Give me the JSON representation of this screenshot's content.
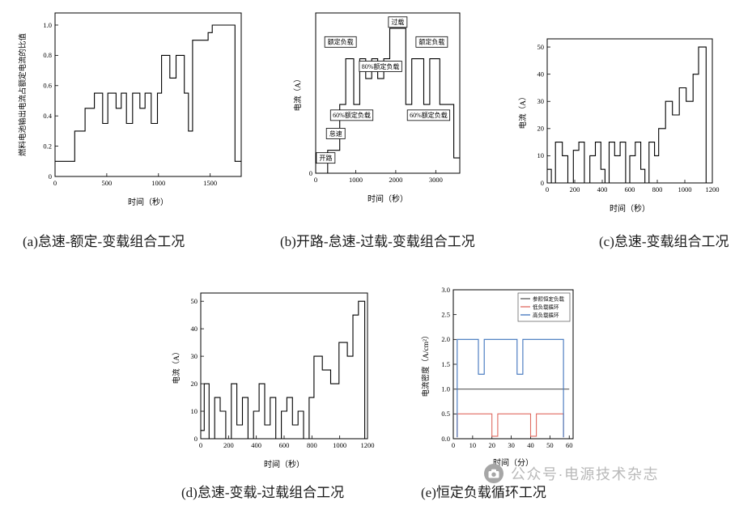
{
  "captions": {
    "a": "(a)怠速-额定-变载组合工况",
    "b": "(b)开路-怠速-过载-变载组合工况",
    "c": "(c)怠速-变载组合工况",
    "d": "(d)怠速-变载-过载组合工况",
    "e": "(e)恒定负载循环工况"
  },
  "watermark": {
    "text": "公众号·电源技术杂志",
    "logo": "camera-icon"
  },
  "chart_data": [
    {
      "id": "a",
      "type": "step",
      "xlabel": "时间（秒）",
      "ylabel": "燃料电池输出电流占额定电流的比值",
      "xlim": [
        0,
        1800
      ],
      "ylim": [
        0,
        1.08
      ],
      "xticks": [
        0,
        500,
        1000,
        1500
      ],
      "yticks": [
        0,
        0.2,
        0.4,
        0.6,
        0.8,
        1.0
      ],
      "ytick_labels": [
        "0",
        "0.2",
        "0.4",
        "0.6",
        "0.8",
        "1.0"
      ],
      "series": [
        {
          "name": "",
          "color": "#000000",
          "mode": "step",
          "xend": 1800,
          "points": [
            [
              0,
              0.1
            ],
            [
              190,
              0.3
            ],
            [
              290,
              0.45
            ],
            [
              380,
              0.55
            ],
            [
              460,
              0.35
            ],
            [
              510,
              0.55
            ],
            [
              590,
              0.45
            ],
            [
              640,
              0.55
            ],
            [
              690,
              0.35
            ],
            [
              750,
              0.55
            ],
            [
              820,
              0.45
            ],
            [
              870,
              0.55
            ],
            [
              930,
              0.35
            ],
            [
              990,
              0.55
            ],
            [
              1030,
              0.8
            ],
            [
              1110,
              0.65
            ],
            [
              1170,
              0.8
            ],
            [
              1250,
              0.55
            ],
            [
              1290,
              0.3
            ],
            [
              1330,
              0.9
            ],
            [
              1480,
              0.95
            ],
            [
              1520,
              1.0
            ],
            [
              1740,
              0.1
            ]
          ]
        }
      ],
      "annotations": [],
      "legend": null
    },
    {
      "id": "b",
      "type": "step",
      "xlabel": "时间（秒）",
      "ylabel": "电流（A）",
      "xlim": [
        0,
        3600
      ],
      "ylim": [
        0,
        105
      ],
      "xticks": [
        0,
        1000,
        2000,
        3000
      ],
      "yticks": [
        0
      ],
      "ytick_labels": [
        "0"
      ],
      "series": [
        {
          "name": "",
          "color": "#000000",
          "mode": "step",
          "xend": 3600,
          "points": [
            [
              0,
              0
            ],
            [
              300,
              15
            ],
            [
              600,
              45
            ],
            [
              750,
              75
            ],
            [
              950,
              45
            ],
            [
              1100,
              75
            ],
            [
              1250,
              62
            ],
            [
              1400,
              75
            ],
            [
              1550,
              62
            ],
            [
              1700,
              75
            ],
            [
              1850,
              95
            ],
            [
              2250,
              45
            ],
            [
              2400,
              75
            ],
            [
              2700,
              45
            ],
            [
              2850,
              75
            ],
            [
              3100,
              45
            ],
            [
              3450,
              10
            ]
          ]
        }
      ],
      "annotations": [
        {
          "text": "开路",
          "x": 250,
          "y": 10
        },
        {
          "text": "怠速",
          "x": 500,
          "y": 26
        },
        {
          "text": "60%额定负载",
          "x": 900,
          "y": 38
        },
        {
          "text": "额定负载",
          "x": 620,
          "y": 86
        },
        {
          "text": "80%额定负载",
          "x": 1620,
          "y": 70
        },
        {
          "text": "过载",
          "x": 2050,
          "y": 99
        },
        {
          "text": "额定负载",
          "x": 2900,
          "y": 86
        },
        {
          "text": "60%额定负载",
          "x": 2820,
          "y": 38
        }
      ],
      "legend": null
    },
    {
      "id": "c",
      "type": "step",
      "xlabel": "时间（秒）",
      "ylabel": "电流（A）",
      "xlim": [
        0,
        1200
      ],
      "ylim": [
        0,
        53
      ],
      "xticks": [
        0,
        200,
        400,
        600,
        800,
        1000,
        1200
      ],
      "yticks": [
        0,
        10,
        20,
        30,
        40,
        50
      ],
      "ytick_labels": [
        "0",
        "10",
        "20",
        "30",
        "40",
        "50"
      ],
      "series": [
        {
          "name": "",
          "color": "#000000",
          "mode": "step",
          "xend": 1200,
          "points": [
            [
              0,
              5
            ],
            [
              30,
              0
            ],
            [
              60,
              15
            ],
            [
              110,
              10
            ],
            [
              150,
              0
            ],
            [
              190,
              12
            ],
            [
              230,
              15
            ],
            [
              270,
              0
            ],
            [
              310,
              10
            ],
            [
              350,
              15
            ],
            [
              390,
              5
            ],
            [
              420,
              0
            ],
            [
              450,
              15
            ],
            [
              490,
              10
            ],
            [
              530,
              15
            ],
            [
              570,
              0
            ],
            [
              600,
              10
            ],
            [
              640,
              15
            ],
            [
              680,
              5
            ],
            [
              710,
              0
            ],
            [
              740,
              15
            ],
            [
              780,
              10
            ],
            [
              810,
              20
            ],
            [
              860,
              30
            ],
            [
              910,
              25
            ],
            [
              960,
              35
            ],
            [
              1010,
              30
            ],
            [
              1060,
              40
            ],
            [
              1100,
              50
            ],
            [
              1155,
              0
            ]
          ]
        }
      ],
      "annotations": [],
      "legend": null
    },
    {
      "id": "d",
      "type": "step",
      "xlabel": "时间（秒）",
      "ylabel": "电流（A）",
      "xlim": [
        0,
        1200
      ],
      "ylim": [
        0,
        53
      ],
      "xticks": [
        0,
        200,
        400,
        600,
        800,
        1000,
        1200
      ],
      "yticks": [
        0,
        10,
        20,
        30,
        40,
        50
      ],
      "ytick_labels": [
        "0",
        "10",
        "20",
        "30",
        "40",
        "50"
      ],
      "series": [
        {
          "name": "",
          "color": "#000000",
          "mode": "step",
          "xend": 1200,
          "points": [
            [
              0,
              3
            ],
            [
              25,
              20
            ],
            [
              60,
              0
            ],
            [
              100,
              15
            ],
            [
              140,
              10
            ],
            [
              180,
              0
            ],
            [
              220,
              20
            ],
            [
              260,
              5
            ],
            [
              300,
              15
            ],
            [
              340,
              0
            ],
            [
              380,
              10
            ],
            [
              420,
              20
            ],
            [
              460,
              5
            ],
            [
              500,
              15
            ],
            [
              540,
              0
            ],
            [
              580,
              10
            ],
            [
              620,
              15
            ],
            [
              660,
              5
            ],
            [
              700,
              10
            ],
            [
              740,
              0
            ],
            [
              780,
              15
            ],
            [
              815,
              30
            ],
            [
              875,
              25
            ],
            [
              935,
              20
            ],
            [
              995,
              35
            ],
            [
              1055,
              30
            ],
            [
              1095,
              45
            ],
            [
              1135,
              50
            ],
            [
              1180,
              0
            ]
          ]
        }
      ],
      "annotations": [],
      "legend": null
    },
    {
      "id": "e",
      "type": "line",
      "xlabel": "时间（分）",
      "ylabel": "电流密度（A/cm²）",
      "xlim": [
        0,
        62
      ],
      "ylim": [
        0,
        3
      ],
      "xticks": [
        0,
        10,
        20,
        30,
        40,
        50,
        60
      ],
      "yticks": [
        0,
        0.5,
        1,
        1.5,
        2,
        2.5,
        3
      ],
      "ytick_labels": [
        "0.0",
        "0.5",
        "1.0",
        "1.5",
        "2.0",
        "2.5",
        "3.0"
      ],
      "series": [
        {
          "name": "参照恒定负载",
          "color": "#595959",
          "mode": "line",
          "points": [
            [
              0,
              1
            ],
            [
              60,
              1
            ]
          ]
        },
        {
          "name": "低负载循环",
          "color": "#e06a60",
          "mode": "line",
          "points": [
            [
              2,
              0.03
            ],
            [
              2,
              0.5
            ],
            [
              20,
              0.5
            ],
            [
              20,
              0.05
            ],
            [
              23,
              0.05
            ],
            [
              23,
              0.5
            ],
            [
              40,
              0.5
            ],
            [
              40,
              0.05
            ],
            [
              43,
              0.05
            ],
            [
              43,
              0.5
            ],
            [
              57,
              0.5
            ],
            [
              57,
              0.03
            ]
          ]
        },
        {
          "name": "高负载循环",
          "color": "#3f74bd",
          "mode": "line",
          "points": [
            [
              2,
              0.03
            ],
            [
              2,
              2
            ],
            [
              13,
              2
            ],
            [
              13,
              1.3
            ],
            [
              16,
              1.3
            ],
            [
              16,
              2
            ],
            [
              33,
              2
            ],
            [
              33,
              1.3
            ],
            [
              36,
              1.3
            ],
            [
              36,
              2
            ],
            [
              57,
              2
            ],
            [
              57,
              0.03
            ]
          ]
        }
      ],
      "annotations": [],
      "legend": {
        "position": "top-right"
      }
    }
  ]
}
